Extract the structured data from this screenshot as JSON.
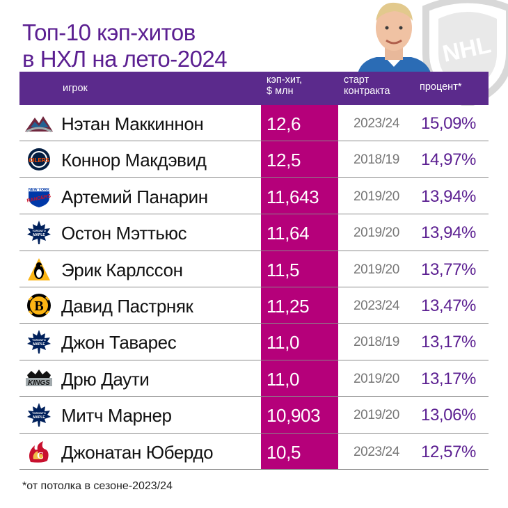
{
  "title": {
    "line1": "Топ-10 кэп-хитов",
    "line2": "в НХЛ на лето-2024"
  },
  "colors": {
    "header_bg": "#5b2a8c",
    "cap_column": "#b5007a",
    "title": "#5b1f91",
    "percent": "#5b1f91"
  },
  "header": {
    "player": "игрок",
    "cap_line1": "кэп-хит,",
    "cap_line2": "$ млн",
    "start_line1": "старт",
    "start_line2": "контракта",
    "percent": "процент*"
  },
  "rows": [
    {
      "team_icon": "avalanche-logo",
      "name": "Нэтан Маккиннон",
      "cap": "12,6",
      "start": "2023/24",
      "percent": "15,09%"
    },
    {
      "team_icon": "oilers-logo",
      "name": "Коннор Макдэвид",
      "cap": "12,5",
      "start": "2018/19",
      "percent": "14,97%"
    },
    {
      "team_icon": "rangers-logo",
      "name": "Артемий Панарин",
      "cap": "11,643",
      "start": "2019/20",
      "percent": "13,94%"
    },
    {
      "team_icon": "maple-leafs-logo",
      "name": "Остон Мэттьюс",
      "cap": "11,64",
      "start": "2019/20",
      "percent": "13,94%"
    },
    {
      "team_icon": "penguins-logo",
      "name": "Эрик Карлссон",
      "cap": "11,5",
      "start": "2019/20",
      "percent": "13,77%"
    },
    {
      "team_icon": "bruins-logo",
      "name": "Давид Пастрняк",
      "cap": "11,25",
      "start": "2023/24",
      "percent": "13,47%"
    },
    {
      "team_icon": "maple-leafs-logo",
      "name": "Джон Таварес",
      "cap": "11,0",
      "start": "2018/19",
      "percent": "13,17%"
    },
    {
      "team_icon": "kings-logo",
      "name": "Дрю Даути",
      "cap": "11,0",
      "start": "2019/20",
      "percent": "13,17%"
    },
    {
      "team_icon": "maple-leafs-logo",
      "name": "Митч Марнер",
      "cap": "10,903",
      "start": "2019/20",
      "percent": "13,06%"
    },
    {
      "team_icon": "flames-logo",
      "name": "Джонатан Юбердо",
      "cap": "10,5",
      "start": "2023/24",
      "percent": "12,57%"
    }
  ],
  "footnote": "*от потолка в сезоне-2023/24",
  "watermark_logo_text": "NHL"
}
